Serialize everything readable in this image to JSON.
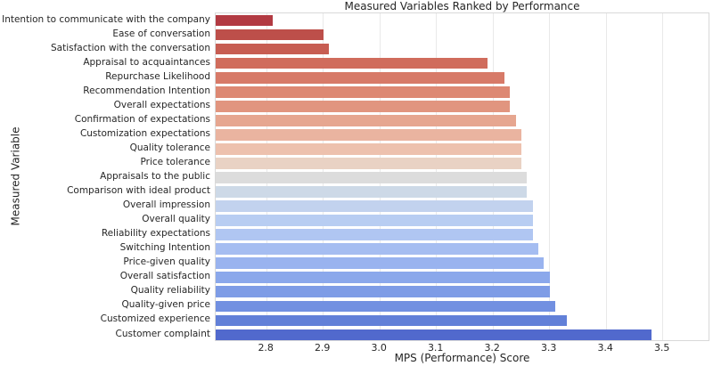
{
  "chart_data": {
    "type": "bar",
    "orientation": "horizontal",
    "title": "Measured Variables Ranked by Performance",
    "xlabel": "MPS (Performance) Score",
    "ylabel": "Measured Variable",
    "xlim": [
      2.71,
      3.584
    ],
    "xticks": [
      2.8,
      2.9,
      3.0,
      3.1,
      3.2,
      3.3,
      3.4,
      3.5
    ],
    "grid": true,
    "legend": false,
    "palette": "coolwarm",
    "categories": [
      "Intention to communicate with the company",
      "Ease of conversation",
      "Satisfaction with the conversation",
      "Appraisal to acquaintances",
      "Repurchase Likelihood",
      "Recommendation Intention",
      "Overall expectations",
      "Confirmation of expectations",
      "Customization expectations",
      "Quality tolerance",
      "Price tolerance",
      "Appraisals to the public",
      "Comparison with ideal product",
      "Overall impression",
      "Overall quality",
      "Reliability expectations",
      "Switching Intention",
      "Price-given quality",
      "Overall satisfaction",
      "Quality reliability",
      "Quality-given price",
      "Customized experience",
      "Customer complaint"
    ],
    "values": [
      2.81,
      2.9,
      2.91,
      3.19,
      3.22,
      3.23,
      3.23,
      3.24,
      3.25,
      3.25,
      3.25,
      3.26,
      3.26,
      3.27,
      3.27,
      3.27,
      3.28,
      3.29,
      3.3,
      3.3,
      3.31,
      3.33,
      3.48
    ],
    "bar_colors": [
      "#b23a42",
      "#bd4f4a",
      "#c75d52",
      "#d06c5c",
      "#d77a68",
      "#dd8873",
      "#e1957f",
      "#e6a690",
      "#eab4a0",
      "#edc1ae",
      "#e9d2c4",
      "#dcdcdc",
      "#cdd9e7",
      "#c2d2ee",
      "#b8cdf2",
      "#b0c6f2",
      "#a5bdf1",
      "#99b3ef",
      "#8ba8eb",
      "#7e9ce6",
      "#7290e1",
      "#6280d8",
      "#5169cd"
    ]
  },
  "style": {
    "background": "#ffffff",
    "grid_color": "#e9e9e9",
    "border_color": "#d9d9d9",
    "text_color": "#262626"
  }
}
